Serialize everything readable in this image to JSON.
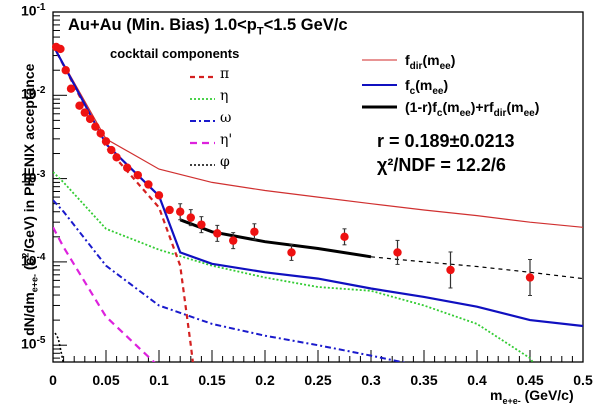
{
  "chart_data": {
    "type": "scatter",
    "title": "Au+Au (Min. Bias) 1.0<pT<1.5 GeV/c",
    "xlabel": "m_e+e- (GeV/c)",
    "ylabel": "dN/dm_e+e- (c^2/GeV) in PHENIX acceptance",
    "xlim": [
      0,
      0.5
    ],
    "ylim": [
      3e-06,
      0.1
    ],
    "yscale": "log",
    "x_ticks": [
      "0",
      "0.05",
      "0.1",
      "0.15",
      "0.2",
      "0.25",
      "0.3",
      "0.35",
      "0.4",
      "0.45",
      "0.5"
    ],
    "y_ticks": [
      "10^-1",
      "10^-2",
      "10^-3",
      "10^-4",
      "10^-5"
    ],
    "legend_cocktail_title": "cocktail components",
    "legend_cocktail": [
      {
        "label": "π",
        "color": "#d42020",
        "style": "dashed"
      },
      {
        "label": "η",
        "color": "#33cc33",
        "style": "dotted"
      },
      {
        "label": "ω",
        "color": "#1a1acc",
        "style": "dashdot"
      },
      {
        "label": "η'",
        "color": "#dd22dd",
        "style": "dashed"
      },
      {
        "label": "φ",
        "color": "#000000",
        "style": "dashdotdot"
      }
    ],
    "legend_fits": [
      {
        "label": "f_dir(m_ee)",
        "color": "#d03030"
      },
      {
        "label": "f_c(m_ee)",
        "color": "#1010c0"
      },
      {
        "label": "(1-r)f_c(m_ee)+rf_dir(m_ee)",
        "color": "#000000"
      }
    ],
    "annotations": [
      "r = 0.189±0.0213",
      "χ²/NDF = 12.2/6"
    ],
    "data_points": {
      "x": [
        0.003,
        0.007,
        0.012,
        0.017,
        0.025,
        0.03,
        0.035,
        0.04,
        0.045,
        0.05,
        0.055,
        0.06,
        0.07,
        0.08,
        0.09,
        0.1,
        0.11,
        0.12,
        0.13,
        0.14,
        0.155,
        0.17,
        0.19,
        0.225,
        0.275,
        0.325,
        0.375,
        0.45
      ],
      "y": [
        0.038,
        0.036,
        0.02,
        0.012,
        0.0075,
        0.0062,
        0.0052,
        0.0042,
        0.0035,
        0.0028,
        0.0022,
        0.0018,
        0.00135,
        0.0011,
        0.00085,
        0.00063,
        0.00042,
        0.0004,
        0.00034,
        0.00028,
        0.00022,
        0.00018,
        0.00023,
        0.00013,
        0.0002,
        0.00013,
        8e-05,
        6.5e-05
      ]
    },
    "series": [
      {
        "name": "f_dir(m_ee)",
        "x": [
          0.0,
          0.05,
          0.1,
          0.15,
          0.2,
          0.25,
          0.3,
          0.35,
          0.4,
          0.45,
          0.5
        ],
        "y": [
          0.04,
          0.003,
          0.0013,
          0.0009,
          0.00072,
          0.0006,
          0.0005,
          0.00042,
          0.00036,
          0.0003,
          0.00026
        ]
      },
      {
        "name": "f_c(m_ee)",
        "x": [
          0.0,
          0.05,
          0.1,
          0.12,
          0.15,
          0.2,
          0.25,
          0.3,
          0.35,
          0.4,
          0.45,
          0.5
        ],
        "y": [
          0.04,
          0.0026,
          0.00062,
          0.00013,
          9.5e-05,
          7.5e-05,
          6.3e-05,
          4.8e-05,
          3.8e-05,
          2.9e-05,
          2e-05,
          1.7e-05
        ]
      },
      {
        "name": "(1-r)f_c(m_ee)+rf_dir(m_ee)",
        "x": [
          0.12,
          0.15,
          0.2,
          0.25,
          0.3,
          0.35,
          0.4,
          0.45,
          0.5
        ],
        "y": [
          0.00032,
          0.00023,
          0.000175,
          0.000145,
          0.000115,
          0.0001,
          8.8e-05,
          7.5e-05,
          6.3e-05
        ]
      },
      {
        "name": "π",
        "x": [
          0.0,
          0.05,
          0.1,
          0.12,
          0.13,
          0.135
        ],
        "y": [
          0.04,
          0.0024,
          0.00045,
          9e-05,
          1e-05,
          3e-06
        ]
      },
      {
        "name": "η",
        "x": [
          0.0,
          0.01,
          0.05,
          0.1,
          0.15,
          0.2,
          0.25,
          0.3,
          0.35,
          0.4,
          0.45,
          0.47
        ],
        "y": [
          0.0012,
          0.0009,
          0.00025,
          0.00014,
          9e-05,
          6.5e-05,
          5e-05,
          4.5e-05,
          3e-05,
          1.8e-05,
          7e-06,
          3e-06
        ]
      },
      {
        "name": "ω",
        "x": [
          0.0,
          0.01,
          0.05,
          0.1,
          0.15,
          0.2,
          0.25,
          0.3,
          0.35,
          0.4,
          0.45,
          0.5
        ],
        "y": [
          0.00055,
          0.0004,
          9e-05,
          3e-05,
          1.8e-05,
          1.3e-05,
          1e-05,
          7.5e-06,
          5.5e-06,
          4e-06,
          3.3e-06,
          3e-06
        ]
      },
      {
        "name": "η'",
        "x": [
          0.0,
          0.01,
          0.05,
          0.1,
          0.15,
          0.17
        ],
        "y": [
          0.00026,
          0.00015,
          2.2e-05,
          5.5e-06,
          3.2e-06,
          3e-06
        ]
      },
      {
        "name": "φ",
        "x": [
          0.002,
          0.005,
          0.01,
          0.015
        ],
        "y": [
          1.4e-05,
          1.2e-05,
          6e-06,
          3e-06
        ]
      }
    ]
  }
}
